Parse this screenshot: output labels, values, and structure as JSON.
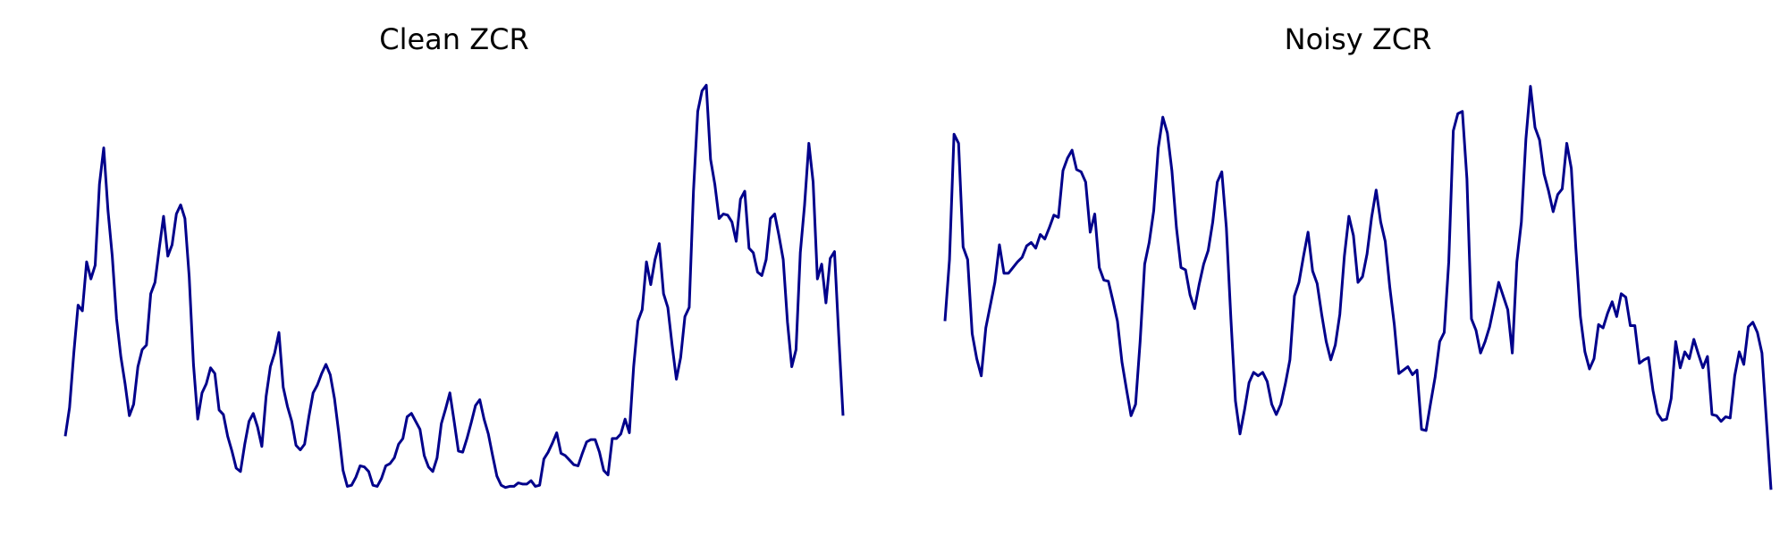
{
  "chart_data": [
    {
      "type": "line",
      "title": "Clean ZCR",
      "color": "#00008b",
      "ylim": [
        0,
        370
      ],
      "values": [
        57,
        82,
        130,
        172,
        167,
        210,
        195,
        207,
        278,
        310,
        255,
        215,
        160,
        127,
        103,
        75,
        85,
        118,
        133,
        137,
        182,
        192,
        222,
        250,
        215,
        225,
        252,
        260,
        248,
        197,
        120,
        72,
        95,
        103,
        117,
        112,
        80,
        76,
        57,
        44,
        29,
        26,
        50,
        70,
        77,
        65,
        48,
        92,
        118,
        130,
        148,
        100,
        83,
        70,
        49,
        45,
        50,
        74,
        95,
        102,
        112,
        120,
        111,
        90,
        60,
        27,
        13,
        14,
        21,
        31,
        30,
        26,
        14,
        13,
        20,
        31,
        33,
        38,
        50,
        55,
        74,
        77,
        70,
        63,
        40,
        30,
        26,
        38,
        68,
        81,
        95,
        70,
        44,
        43,
        55,
        69,
        84,
        89,
        72,
        59,
        40,
        22,
        14,
        12,
        13,
        13,
        16,
        15,
        15,
        18,
        13,
        14,
        37,
        43,
        51,
        60,
        42,
        40,
        36,
        32,
        31,
        42,
        52,
        54,
        54,
        43,
        27,
        23,
        55,
        55,
        59,
        72,
        60,
        118,
        158,
        168,
        210,
        190,
        212,
        226,
        182,
        170,
        137,
        107,
        126,
        162,
        170,
        272,
        342,
        360,
        365,
        300,
        278,
        248,
        252,
        251,
        245,
        228,
        265,
        272,
        222,
        218,
        201,
        198,
        212,
        248,
        252,
        233,
        212,
        157,
        118,
        133,
        218,
        260,
        314,
        280,
        195,
        208,
        174,
        213,
        219,
        145,
        75
      ]
    },
    {
      "type": "line",
      "title": "Noisy ZCR",
      "color": "#00008b",
      "ylim": [
        0,
        370
      ],
      "values": [
        158,
        212,
        322,
        314,
        223,
        212,
        147,
        125,
        110,
        152,
        172,
        192,
        225,
        200,
        200,
        205,
        210,
        214,
        224,
        227,
        222,
        234,
        230,
        240,
        251,
        249,
        290,
        301,
        308,
        291,
        289,
        280,
        236,
        252,
        205,
        194,
        193,
        176,
        158,
        122,
        98,
        75,
        85,
        140,
        208,
        227,
        255,
        310,
        337,
        323,
        290,
        240,
        205,
        203,
        181,
        169,
        190,
        208,
        220,
        245,
        280,
        289,
        240,
        160,
        88,
        59,
        80,
        104,
        113,
        110,
        113,
        105,
        85,
        76,
        85,
        103,
        124,
        180,
        192,
        215,
        236,
        202,
        191,
        164,
        140,
        124,
        137,
        164,
        215,
        250,
        233,
        192,
        197,
        217,
        249,
        273,
        245,
        228,
        188,
        155,
        112,
        115,
        118,
        111,
        115,
        63,
        62,
        86,
        109,
        140,
        148,
        210,
        325,
        340,
        342,
        283,
        160,
        150,
        130,
        140,
        153,
        172,
        192,
        180,
        168,
        130,
        210,
        245,
        318,
        364,
        328,
        317,
        287,
        272,
        254,
        269,
        274,
        314,
        292,
        222,
        162,
        131,
        116,
        125,
        155,
        152,
        165,
        175,
        162,
        182,
        179,
        154,
        154,
        121,
        124,
        126,
        97,
        77,
        71,
        72,
        90,
        140,
        117,
        131,
        125,
        142,
        129,
        117,
        127,
        76,
        75,
        70,
        74,
        73,
        110,
        131,
        120,
        153,
        157,
        148,
        130,
        70,
        10
      ]
    }
  ]
}
